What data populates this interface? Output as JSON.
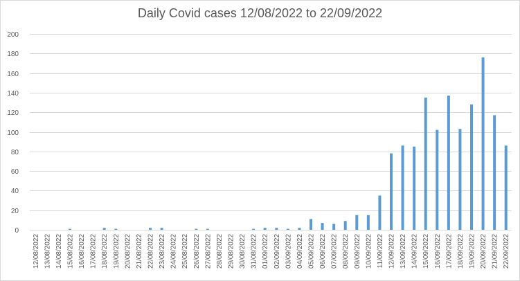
{
  "chart_data": {
    "type": "bar",
    "title": "Daily Covid cases 12/08/2022 to 22/09/2022",
    "xlabel": "",
    "ylabel": "",
    "ylim": [
      0,
      200
    ],
    "yticks": [
      "0",
      "20",
      "40",
      "60",
      "80",
      "100",
      "120",
      "140",
      "160",
      "180",
      "200"
    ],
    "grid": true,
    "legend": "none",
    "bar_color": "#5b9bd5",
    "categories": [
      "12/08/2022",
      "13/08/2022",
      "14/08/2022",
      "15/08/2022",
      "16/08/2022",
      "17/08/2022",
      "18/08/2022",
      "19/08/2022",
      "20/08/2022",
      "21/08/2022",
      "22/08/2022",
      "23/08/2022",
      "24/08/2022",
      "25/08/2022",
      "26/08/2022",
      "27/08/2022",
      "28/08/2022",
      "29/08/2022",
      "30/08/2022",
      "31/08/2022",
      "01/09/2022",
      "02/09/2022",
      "03/09/2022",
      "04/09/2022",
      "05/09/2022",
      "06/09/2022",
      "07/09/2022",
      "08/09/2022",
      "09/09/2022",
      "10/09/2022",
      "11/09/2022",
      "12/09/2022",
      "13/09/2022",
      "14/09/2022",
      "15/09/2022",
      "16/09/2022",
      "17/09/2022",
      "18/09/2022",
      "19/09/2022",
      "20/09/2022",
      "21/09/2022",
      "22/09/2022"
    ],
    "values": [
      0,
      0,
      0,
      1,
      0,
      0,
      2,
      1,
      0,
      0,
      2,
      2,
      0,
      0,
      1,
      1,
      0,
      0,
      0,
      1,
      2,
      2,
      1,
      2,
      11,
      7,
      6,
      9,
      15,
      15,
      35,
      78,
      86,
      85,
      135,
      102,
      137,
      103,
      128,
      176,
      117,
      86
    ]
  }
}
